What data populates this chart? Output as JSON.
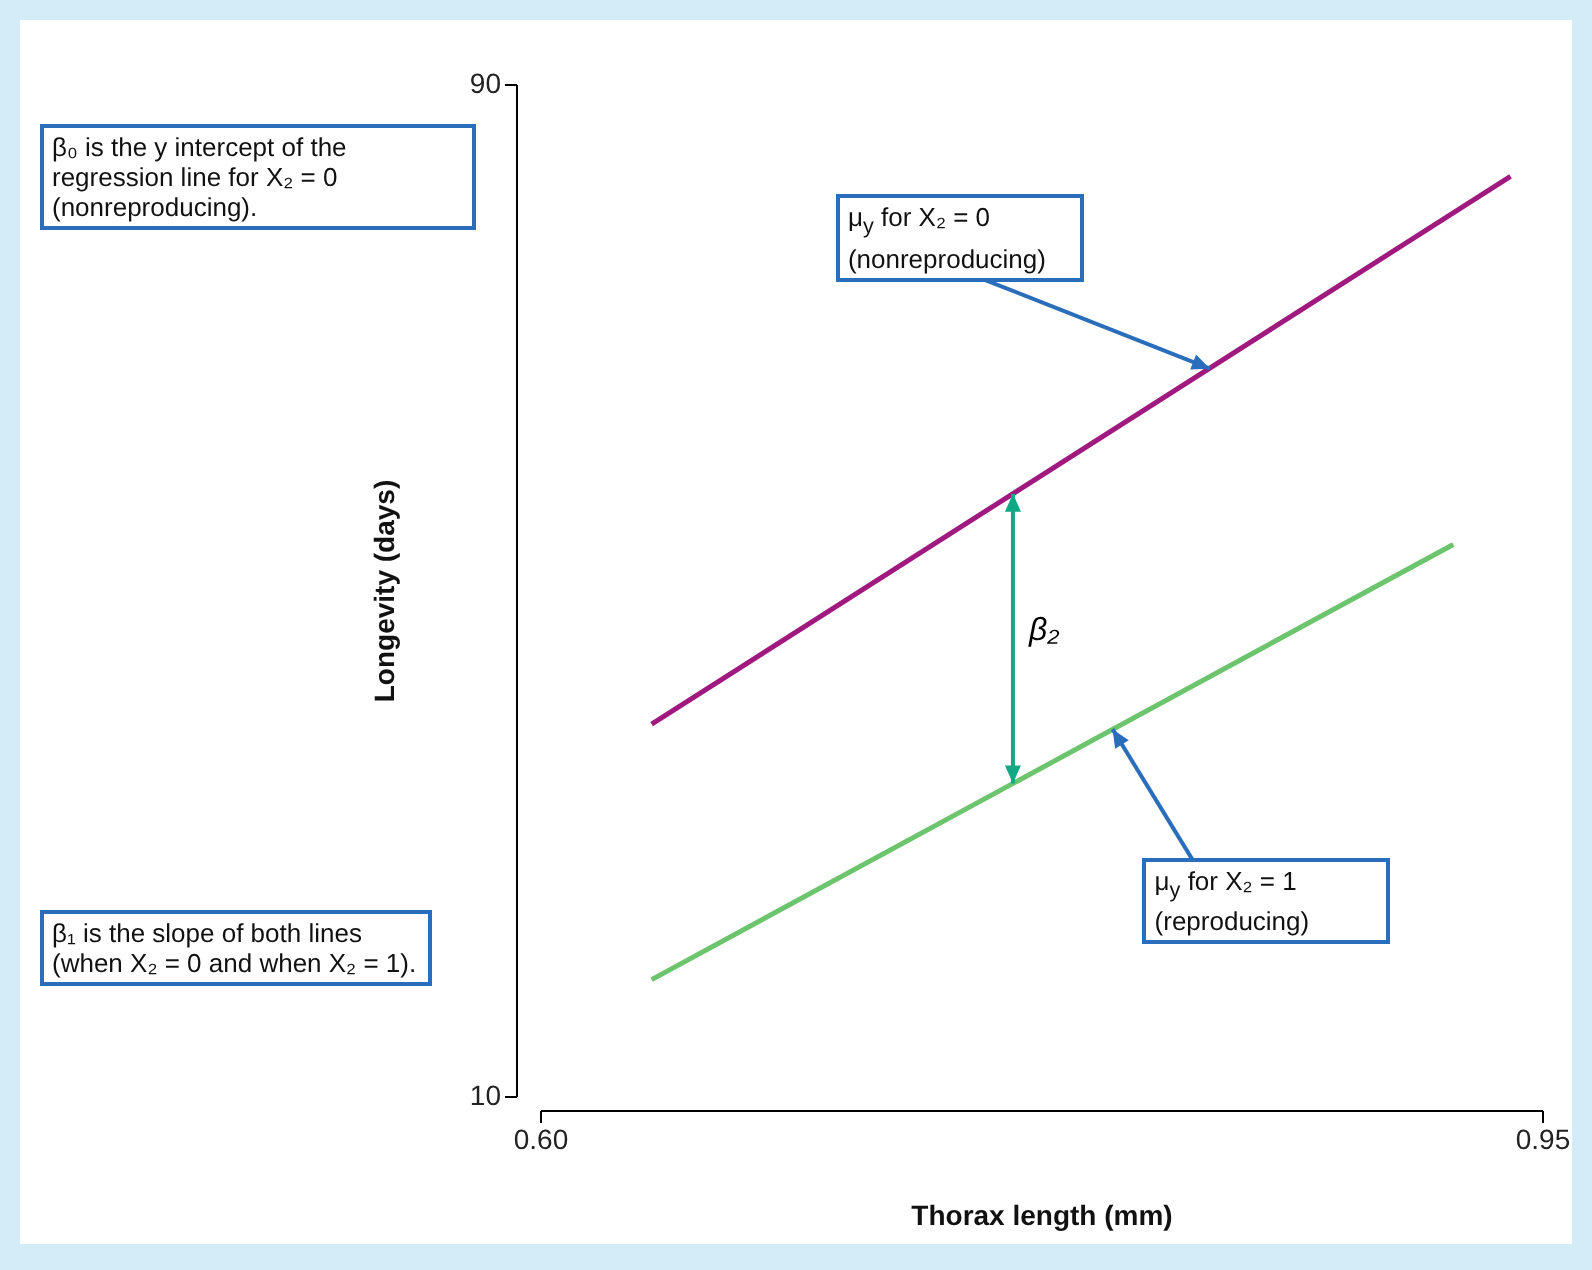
{
  "chart_data": {
    "type": "line",
    "xlabel": "Thorax length (mm)",
    "ylabel": "Longevity (days)",
    "xlim": [
      0.6,
      0.95
    ],
    "xticks": [
      {
        "value": 0.6,
        "label": "0.60"
      },
      {
        "value": 0.95,
        "label": "0.95"
      }
    ],
    "ylim": [
      10,
      90
    ],
    "yticks": [
      10,
      90
    ],
    "grid": false,
    "marker": "none",
    "line_style": "solid",
    "series": [
      {
        "color": "#a0197f",
        "x": [
          0.639,
          0.939
        ],
        "values": [
          39.4,
          82.7
        ]
      },
      {
        "color": "#6cc46c",
        "x": [
          0.639,
          0.919
        ],
        "values": [
          19.2,
          53.6
        ]
      }
    ],
    "annotations": [
      "β₀ is the y intercept of the regression line for X₂ = 0 (nonreproducing).",
      "β₁ is the slope of both lines (when X₂ = 0 and when X₂ = 1).",
      {
        "text": "μ$_{y}$ for X₂ = 0 (nonreproducing)",
        "x": 0.834,
        "y": 67.5
      },
      {
        "text": "μ$_{y}$ for X₂ = 1 (reproducing)",
        "x": 0.8,
        "y": 39.0
      },
      "β₂"
    ]
  }
}
